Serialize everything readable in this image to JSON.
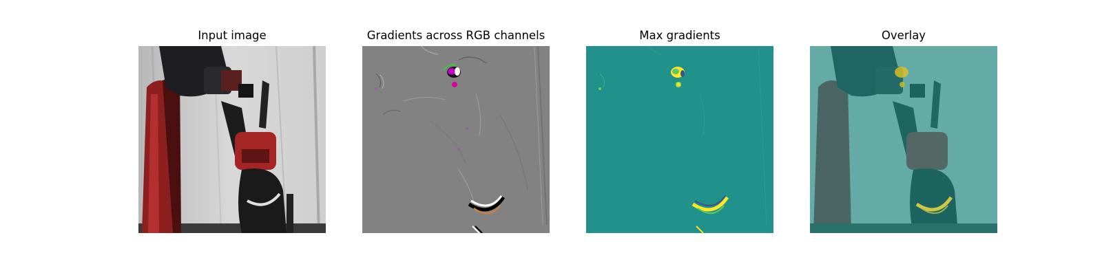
{
  "panels": [
    {
      "title": "Input image"
    },
    {
      "title": "Gradients across RGB channels"
    },
    {
      "title": "Max gradients"
    },
    {
      "title": "Overlay"
    }
  ]
}
